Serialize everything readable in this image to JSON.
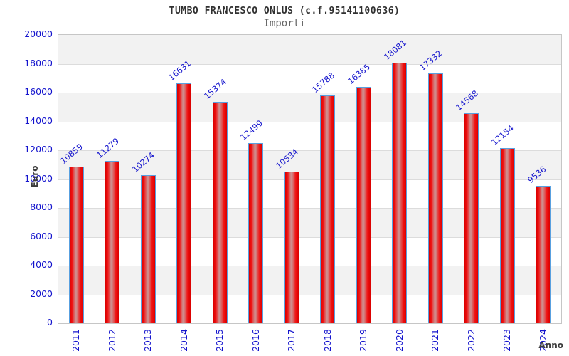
{
  "chart_data": {
    "type": "bar",
    "title": "TUMBO FRANCESCO ONLUS (c.f.95141100636)",
    "subtitle": "Importi",
    "xlabel": "Anno",
    "ylabel": "Euro",
    "categories": [
      "2011",
      "2012",
      "2013",
      "2014",
      "2015",
      "2016",
      "2017",
      "2018",
      "2019",
      "2020",
      "2021",
      "2022",
      "2023",
      "2024"
    ],
    "values": [
      10859,
      11279,
      10274,
      16631,
      15374,
      12499,
      10534,
      15788,
      16385,
      18081,
      17332,
      14568,
      12154,
      9536
    ],
    "ylim": [
      0,
      20000
    ],
    "ytick_step": 2000,
    "yticks": [
      20000,
      18000,
      16000,
      14000,
      12000,
      10000,
      8000,
      6000,
      4000,
      2000,
      0
    ],
    "grid": "horizontal-bands-alternating",
    "legend": "none",
    "bar_label_rotation_deg": -40,
    "xtick_rotation_deg": -90,
    "colors": {
      "tick_label": "#1414cd",
      "bar_value_label": "#1414cd",
      "bar_border": "#58a0e0",
      "bar_gradient_edge": "#d90000",
      "bar_gradient_bright": "#f01212",
      "bar_gradient_highlight": "#d08c8c",
      "band_gray": "#f2f2f2",
      "band_white": "#ffffff",
      "grid_line": "#dcdcdc",
      "plot_border": "#c6c6c6",
      "title_color": "#303030",
      "subtitle_color": "#666666",
      "axis_title_color": "#3c3c3c",
      "background": "#ffffff"
    }
  }
}
